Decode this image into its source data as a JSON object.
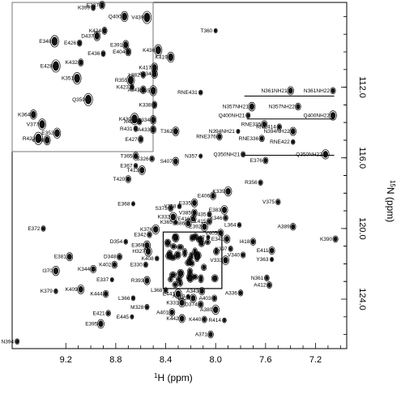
{
  "chart_data": {
    "type": "scatter",
    "title": "",
    "xlabel": "1H (ppm)",
    "xlabel_sup": "1",
    "xlabel_rest": "H (ppm)",
    "ylabel": "15N (ppm)",
    "ylabel_sup": "15",
    "ylabel_rest": "N (ppm)",
    "x_reversed": true,
    "y_reversed": true,
    "xlim": [
      9.63,
      6.95
    ],
    "ylim": [
      107.2,
      126.8
    ],
    "x_ticks": [
      9.2,
      8.8,
      8.4,
      8.0,
      7.6,
      7.2
    ],
    "x_tick_labels": [
      "9.2",
      "8.8",
      "8.4",
      "8.0",
      "7.6",
      "7.2"
    ],
    "y_ticks": [
      112.0,
      116.0,
      120.0,
      124.0
    ],
    "y_tick_labels": [
      "112.0",
      "116.0",
      "120.0",
      "124.0"
    ],
    "zoom_box": {
      "x": [
        8.42,
        7.95
      ],
      "y": [
        120.2,
        123.4
      ]
    },
    "pair_lines": [
      {
        "x1": 7.77,
        "x2": 7.05,
        "y": 112.5
      },
      {
        "x1": 7.75,
        "x2": 7.05,
        "y": 113.8
      },
      {
        "x1": 7.77,
        "x2": 7.05,
        "y": 115.85
      }
    ],
    "points": [
      {
        "label": "T360",
        "x": 8.0,
        "y": 108.8
      },
      {
        "label": "N361NH21",
        "x": 7.4,
        "y": 112.2
      },
      {
        "label": "N361NH22",
        "x": 7.06,
        "y": 112.2
      },
      {
        "label": "RNE431",
        "x": 8.12,
        "y": 112.3
      },
      {
        "label": "N357NH21",
        "x": 7.71,
        "y": 113.1
      },
      {
        "label": "N357NH22",
        "x": 7.34,
        "y": 113.1
      },
      {
        "label": "Q400NH21",
        "x": 7.74,
        "y": 113.6
      },
      {
        "label": "Q400NH22",
        "x": 7.06,
        "y": 113.6
      },
      {
        "label": "RNE335",
        "x": 7.61,
        "y": 114.1
      },
      {
        "label": "RNE414",
        "x": 7.49,
        "y": 114.25
      },
      {
        "label": "N394NH21",
        "x": 7.82,
        "y": 114.5
      },
      {
        "label": "N394NH22",
        "x": 7.38,
        "y": 114.5
      },
      {
        "label": "RNE336",
        "x": 7.63,
        "y": 114.9
      },
      {
        "label": "RNE422",
        "x": 7.38,
        "y": 115.1
      },
      {
        "label": "T362",
        "x": 8.32,
        "y": 114.5
      },
      {
        "label": "RNE376",
        "x": 7.97,
        "y": 114.8
      },
      {
        "label": "Q350NH21",
        "x": 7.78,
        "y": 115.8
      },
      {
        "label": "Q350NH22",
        "x": 7.12,
        "y": 115.8
      },
      {
        "label": "T365",
        "x": 8.64,
        "y": 115.9
      },
      {
        "label": "S326",
        "x": 8.51,
        "y": 116.05
      },
      {
        "label": "N357",
        "x": 8.12,
        "y": 115.9
      },
      {
        "label": "S407",
        "x": 8.32,
        "y": 116.2
      },
      {
        "label": "E376",
        "x": 7.6,
        "y": 116.15
      },
      {
        "label": "E367",
        "x": 8.64,
        "y": 116.45
      },
      {
        "label": "T413",
        "x": 8.59,
        "y": 116.7
      },
      {
        "label": "T420",
        "x": 8.7,
        "y": 117.2
      },
      {
        "label": "R356",
        "x": 7.64,
        "y": 117.4
      },
      {
        "label": "K339",
        "x": 7.9,
        "y": 117.9
      },
      {
        "label": "E406",
        "x": 8.02,
        "y": 118.15
      },
      {
        "label": "V375",
        "x": 7.5,
        "y": 118.5
      },
      {
        "label": "E368",
        "x": 8.66,
        "y": 118.6
      },
      {
        "label": "E335",
        "x": 8.17,
        "y": 118.55
      },
      {
        "label": "S373",
        "x": 8.36,
        "y": 118.85
      },
      {
        "label": "Y358",
        "x": 8.29,
        "y": 118.75
      },
      {
        "label": "E383",
        "x": 7.93,
        "y": 118.95
      },
      {
        "label": "V385",
        "x": 8.17,
        "y": 119.1
      },
      {
        "label": "E435",
        "x": 8.05,
        "y": 119.2
      },
      {
        "label": "K332",
        "x": 8.34,
        "y": 119.35
      },
      {
        "label": "E416",
        "x": 8.18,
        "y": 119.45
      },
      {
        "label": "K346",
        "x": 7.92,
        "y": 119.4
      },
      {
        "label": "K365",
        "x": 8.32,
        "y": 119.65
      },
      {
        "label": "E386",
        "x": 8.22,
        "y": 119.7
      },
      {
        "label": "L415",
        "x": 8.05,
        "y": 119.6
      },
      {
        "label": "L364",
        "x": 7.81,
        "y": 119.8
      },
      {
        "label": "E392",
        "x": 8.09,
        "y": 119.9
      },
      {
        "label": "A389",
        "x": 7.38,
        "y": 119.9
      },
      {
        "label": "E372",
        "x": 9.38,
        "y": 120.0
      },
      {
        "label": "K376",
        "x": 8.48,
        "y": 120.05
      },
      {
        "label": "V405",
        "x": 7.96,
        "y": 120.25
      },
      {
        "label": "E342",
        "x": 8.53,
        "y": 120.35
      },
      {
        "label": "Q387",
        "x": 8.06,
        "y": 120.5
      },
      {
        "label": "E341",
        "x": 7.91,
        "y": 120.6
      },
      {
        "label": "K390",
        "x": 7.04,
        "y": 120.6
      },
      {
        "label": "D354",
        "x": 8.72,
        "y": 120.75
      },
      {
        "label": "E369",
        "x": 8.55,
        "y": 120.95
      },
      {
        "label": "I418",
        "x": 7.7,
        "y": 120.75
      },
      {
        "label": "K397",
        "x": 7.88,
        "y": 121.15
      },
      {
        "label": "H327",
        "x": 8.54,
        "y": 121.3
      },
      {
        "label": "E411",
        "x": 7.55,
        "y": 121.25
      },
      {
        "label": "V340",
        "x": 7.78,
        "y": 121.5
      },
      {
        "label": "Y363",
        "x": 7.55,
        "y": 121.75
      },
      {
        "label": "E381",
        "x": 9.17,
        "y": 121.6
      },
      {
        "label": "D348",
        "x": 8.77,
        "y": 121.6
      },
      {
        "label": "K408",
        "x": 8.47,
        "y": 121.7
      },
      {
        "label": "V333",
        "x": 7.92,
        "y": 121.8
      },
      {
        "label": "K402",
        "x": 8.81,
        "y": 122.05
      },
      {
        "label": "E330",
        "x": 8.56,
        "y": 122.05
      },
      {
        "label": "I370",
        "x": 9.28,
        "y": 122.4
      },
      {
        "label": "K344",
        "x": 8.98,
        "y": 122.3
      },
      {
        "label": "N361",
        "x": 7.59,
        "y": 122.8
      },
      {
        "label": "E337",
        "x": 8.83,
        "y": 122.9
      },
      {
        "label": "R393",
        "x": 8.55,
        "y": 122.95
      },
      {
        "label": "A412",
        "x": 7.57,
        "y": 123.2
      },
      {
        "label": "K379",
        "x": 9.28,
        "y": 123.55
      },
      {
        "label": "K409",
        "x": 9.08,
        "y": 123.45
      },
      {
        "label": "K444",
        "x": 8.88,
        "y": 123.7
      },
      {
        "label": "L368",
        "x": 8.4,
        "y": 123.5
      },
      {
        "label": "E441",
        "x": 8.3,
        "y": 123.7
      },
      {
        "label": "A343",
        "x": 8.11,
        "y": 123.55
      },
      {
        "label": "A336",
        "x": 7.8,
        "y": 123.65
      },
      {
        "label": "A410",
        "x": 8.22,
        "y": 123.85
      },
      {
        "label": "E438",
        "x": 8.18,
        "y": 123.95
      },
      {
        "label": "A403",
        "x": 8.01,
        "y": 123.95
      },
      {
        "label": "L366",
        "x": 8.66,
        "y": 123.95
      },
      {
        "label": "K331",
        "x": 8.27,
        "y": 124.2
      },
      {
        "label": "D374",
        "x": 8.12,
        "y": 124.3
      },
      {
        "label": "M328",
        "x": 8.55,
        "y": 124.45
      },
      {
        "label": "A380",
        "x": 8.0,
        "y": 124.6
      },
      {
        "label": "A401",
        "x": 8.35,
        "y": 124.75
      },
      {
        "label": "E421",
        "x": 8.86,
        "y": 124.8
      },
      {
        "label": "E445",
        "x": 8.67,
        "y": 125.0
      },
      {
        "label": "K442",
        "x": 8.27,
        "y": 125.1
      },
      {
        "label": "K440",
        "x": 8.09,
        "y": 125.15
      },
      {
        "label": "R414",
        "x": 7.93,
        "y": 125.2
      },
      {
        "label": "E395",
        "x": 8.92,
        "y": 125.4
      },
      {
        "label": "A371",
        "x": 8.04,
        "y": 126.0
      },
      {
        "label": "N394",
        "x": 9.59,
        "y": 126.4
      }
    ],
    "inset_points": [
      {
        "label": "K399",
        "x": 8.98,
        "y": 107.5
      },
      {
        "label": "E387",
        "x": 8.91,
        "y": 107.35
      },
      {
        "label": "Q400",
        "x": 8.73,
        "y": 108.0
      },
      {
        "label": "V439",
        "x": 8.55,
        "y": 108.05
      },
      {
        "label": "K424",
        "x": 8.89,
        "y": 108.8
      },
      {
        "label": "D437",
        "x": 8.95,
        "y": 109.1
      },
      {
        "label": "E348",
        "x": 9.29,
        "y": 109.4
      },
      {
        "label": "E426",
        "x": 9.09,
        "y": 109.5
      },
      {
        "label": "E391",
        "x": 8.72,
        "y": 109.6
      },
      {
        "label": "K436",
        "x": 8.46,
        "y": 109.9
      },
      {
        "label": "E436",
        "x": 8.9,
        "y": 110.1
      },
      {
        "label": "E404",
        "x": 8.7,
        "y": 110.0
      },
      {
        "label": "K419",
        "x": 8.36,
        "y": 110.3
      },
      {
        "label": "E428",
        "x": 9.28,
        "y": 110.8
      },
      {
        "label": "K432",
        "x": 9.08,
        "y": 110.6
      },
      {
        "label": "K417",
        "x": 8.49,
        "y": 110.9
      },
      {
        "label": "K351",
        "x": 9.11,
        "y": 111.5
      },
      {
        "label": "L382",
        "x": 8.58,
        "y": 111.3
      },
      {
        "label": "A434",
        "x": 8.49,
        "y": 111.25
      },
      {
        "label": "R355",
        "x": 8.68,
        "y": 111.6
      },
      {
        "label": "K423",
        "x": 8.67,
        "y": 112.0
      },
      {
        "label": "A347",
        "x": 8.58,
        "y": 112.15
      },
      {
        "label": "K345",
        "x": 8.5,
        "y": 112.2
      },
      {
        "label": "Q350",
        "x": 9.02,
        "y": 112.7
      },
      {
        "label": "K338",
        "x": 8.49,
        "y": 113.0
      },
      {
        "label": "K364",
        "x": 9.46,
        "y": 113.55
      },
      {
        "label": "K430",
        "x": 8.65,
        "y": 113.8
      },
      {
        "label": "A425",
        "x": 8.61,
        "y": 113.95
      },
      {
        "label": "A334",
        "x": 8.5,
        "y": 113.85
      },
      {
        "label": "V377",
        "x": 9.39,
        "y": 114.1
      },
      {
        "label": "R431",
        "x": 8.64,
        "y": 114.35
      },
      {
        "label": "A433",
        "x": 8.5,
        "y": 114.4
      },
      {
        "label": "E353",
        "x": 9.27,
        "y": 114.6
      },
      {
        "label": "R422",
        "x": 9.42,
        "y": 114.9
      },
      {
        "label": "E427",
        "x": 8.6,
        "y": 114.95
      },
      {
        "label": "V398",
        "x": 9.35,
        "y": 115.0
      }
    ]
  }
}
